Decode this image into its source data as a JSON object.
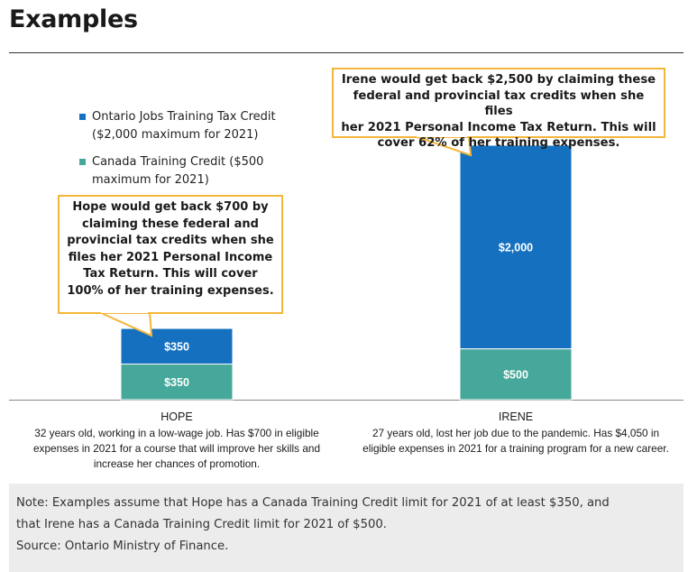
{
  "page": {
    "title": "Examples"
  },
  "chart_data": {
    "type": "bar",
    "stacked": true,
    "categories": [
      "HOPE",
      "IRENE"
    ],
    "series": [
      {
        "name": "Canada Training Credit ($500 maximum for 2021)",
        "color": "#45a89a",
        "values": [
          350,
          500
        ],
        "labels": [
          "$350",
          "$500"
        ]
      },
      {
        "name": "Ontario Jobs Training Tax Credit ($2,000 maximum for 2021)",
        "color": "#1570c0",
        "values": [
          350,
          2000
        ],
        "labels": [
          "$350",
          "$2,000"
        ]
      }
    ],
    "ylim": [
      0,
      2500
    ],
    "grid": false,
    "legend_position": "top-left",
    "legend": [
      {
        "line1": "Ontario Jobs Training Tax Credit",
        "line2": "($2,000 maximum for 2021)",
        "color": "#1570c0"
      },
      {
        "line1": "Canada Training Credit ($500",
        "line2": "maximum for 2021)",
        "color": "#45a89a"
      }
    ],
    "annotations": [
      {
        "target": "HOPE",
        "lines": [
          "Hope would get back $700 by",
          "claiming these federal and",
          "provincial tax credits when she",
          "files her 2021 Personal Income",
          "Tax Return. This will cover",
          "100% of her training expenses."
        ]
      },
      {
        "target": "IRENE",
        "lines": [
          "Irene would get back $2,500 by claiming these",
          "federal and provincial tax credits when she files",
          "her 2021 Personal Income Tax Return. This will",
          "cover 62% of her training expenses."
        ]
      }
    ],
    "category_descriptions": [
      {
        "name": "HOPE",
        "lines": [
          "32 years old, working in a low-wage job. Has $700 in eligible",
          "expenses in 2021 for a course that will improve her skills and",
          "increase her chances of promotion."
        ]
      },
      {
        "name": "IRENE",
        "lines": [
          "27 years old, lost her job due to the pandemic. Has $4,050 in",
          "eligible expenses in 2021 for a training program for a new career."
        ]
      }
    ]
  },
  "note": {
    "lines": [
      "Note: Examples assume that Hope has a Canada Training Credit limit for 2021 of at least $350, and",
      "that Irene has a Canada Training Credit limit for 2021 of $500.",
      "Source: Ontario Ministry of Finance."
    ]
  }
}
